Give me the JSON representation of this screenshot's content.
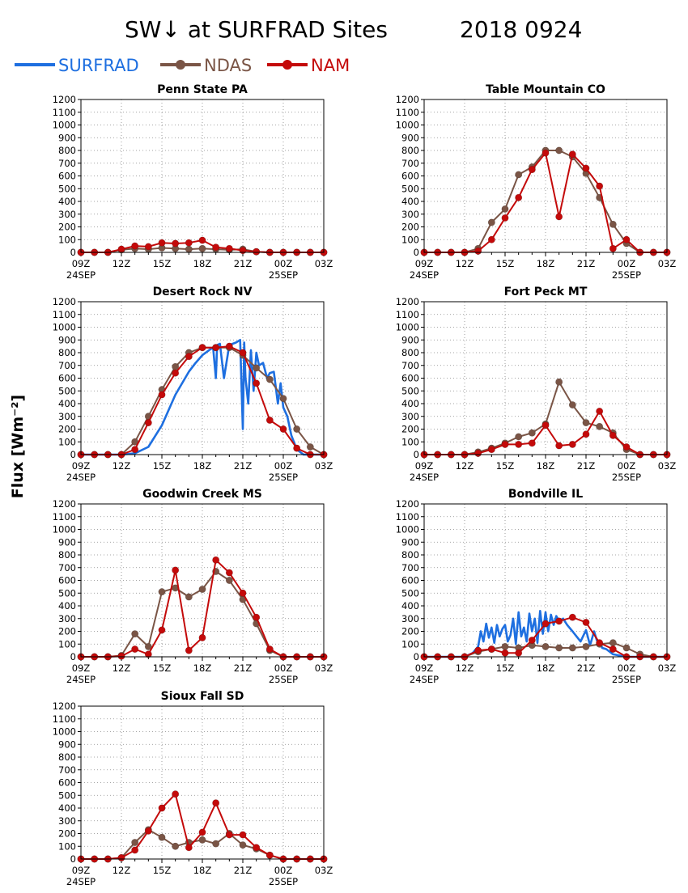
{
  "title_left": "SW↓ at SURFRAD Sites",
  "title_right": "2018 0924",
  "y_axis_label": "Flux [Wm⁻²]",
  "legend": [
    {
      "name": "SURFRAD",
      "color": "#1e6fe0",
      "marker": false
    },
    {
      "name": "NDAS",
      "color": "#7a5546",
      "marker": true
    },
    {
      "name": "NAM",
      "color": "#c40a0a",
      "marker": true
    }
  ],
  "axes": {
    "ylim": [
      0,
      1200
    ],
    "yticks": [
      0,
      100,
      200,
      300,
      400,
      500,
      600,
      700,
      800,
      900,
      1000,
      1100,
      1200
    ],
    "xlim": [
      9,
      27
    ],
    "xticks": [
      {
        "h": 9,
        "label": "09Z",
        "date": "24SEP"
      },
      {
        "h": 12,
        "label": "12Z",
        "date": ""
      },
      {
        "h": 15,
        "label": "15Z",
        "date": ""
      },
      {
        "h": 18,
        "label": "18Z",
        "date": ""
      },
      {
        "h": 21,
        "label": "21Z",
        "date": ""
      },
      {
        "h": 24,
        "label": "00Z",
        "date": "25SEP"
      },
      {
        "h": 27,
        "label": "03Z",
        "date": ""
      }
    ],
    "grid": "dotted"
  },
  "chart_data": [
    {
      "type": "line",
      "title": "Penn State PA",
      "x": [
        9,
        10,
        11,
        12,
        13,
        14,
        15,
        16,
        17,
        18,
        19,
        20,
        21,
        22,
        23,
        24,
        25,
        26,
        27
      ],
      "series": [
        {
          "name": "NDAS",
          "values": [
            0,
            0,
            0,
            20,
            30,
            25,
            35,
            30,
            25,
            30,
            25,
            20,
            25,
            5,
            0,
            0,
            0,
            0,
            0
          ]
        },
        {
          "name": "NAM",
          "values": [
            0,
            0,
            0,
            25,
            50,
            45,
            75,
            70,
            75,
            95,
            40,
            30,
            15,
            5,
            0,
            0,
            0,
            0,
            0
          ]
        }
      ]
    },
    {
      "type": "line",
      "title": "Table Mountain CO",
      "x": [
        9,
        10,
        11,
        12,
        13,
        14,
        15,
        16,
        17,
        18,
        19,
        20,
        21,
        22,
        23,
        24,
        25,
        26,
        27
      ],
      "series": [
        {
          "name": "NDAS",
          "values": [
            0,
            0,
            0,
            0,
            30,
            235,
            340,
            610,
            670,
            800,
            800,
            750,
            620,
            430,
            220,
            70,
            0,
            0,
            0
          ]
        },
        {
          "name": "NAM",
          "values": [
            0,
            0,
            0,
            0,
            10,
            100,
            270,
            430,
            650,
            780,
            280,
            770,
            660,
            520,
            30,
            100,
            0,
            0,
            0
          ]
        }
      ]
    },
    {
      "type": "line",
      "title": "Desert Rock NV",
      "x": [
        9,
        10,
        11,
        12,
        13,
        14,
        15,
        16,
        17,
        18,
        19,
        20,
        21,
        22,
        23,
        24,
        25,
        26,
        27
      ],
      "series": [
        {
          "name": "SURFRAD",
          "x": [
            9,
            12,
            13,
            14,
            15,
            16,
            17,
            17.5,
            18,
            18.5,
            18.8,
            19,
            19.1,
            19.3,
            19.6,
            20,
            20.5,
            20.8,
            21,
            21.1,
            21.2,
            21.4,
            21.6,
            21.8,
            22,
            22.2,
            22.5,
            22.8,
            23,
            23.3,
            23.6,
            23.8,
            24,
            24.3,
            24.6,
            25,
            25.5,
            26,
            27
          ],
          "values": [
            0,
            0,
            10,
            60,
            230,
            470,
            650,
            720,
            780,
            820,
            840,
            600,
            860,
            870,
            600,
            860,
            880,
            900,
            200,
            880,
            600,
            400,
            820,
            500,
            800,
            700,
            720,
            600,
            640,
            650,
            400,
            560,
            370,
            300,
            150,
            40,
            0,
            0,
            0
          ]
        },
        {
          "name": "NDAS",
          "values": [
            0,
            0,
            0,
            0,
            100,
            300,
            510,
            690,
            800,
            840,
            840,
            840,
            780,
            680,
            590,
            440,
            200,
            60,
            0
          ]
        },
        {
          "name": "NAM",
          "values": [
            0,
            0,
            0,
            0,
            40,
            250,
            470,
            640,
            770,
            840,
            840,
            850,
            800,
            560,
            270,
            200,
            50,
            0,
            0
          ]
        }
      ]
    },
    {
      "type": "line",
      "title": "Fort Peck MT",
      "x": [
        9,
        10,
        11,
        12,
        13,
        14,
        15,
        16,
        17,
        18,
        19,
        20,
        21,
        22,
        23,
        24,
        25,
        26,
        27
      ],
      "series": [
        {
          "name": "NDAS",
          "values": [
            0,
            0,
            0,
            0,
            20,
            50,
            90,
            140,
            170,
            240,
            570,
            390,
            250,
            220,
            170,
            40,
            0,
            0,
            0
          ]
        },
        {
          "name": "NAM",
          "values": [
            0,
            0,
            0,
            0,
            10,
            40,
            80,
            80,
            90,
            230,
            70,
            80,
            160,
            340,
            150,
            60,
            0,
            0,
            0
          ]
        }
      ]
    },
    {
      "type": "line",
      "title": "Goodwin Creek MS",
      "x": [
        9,
        10,
        11,
        12,
        13,
        14,
        15,
        16,
        17,
        18,
        19,
        20,
        21,
        22,
        23,
        24,
        25,
        26,
        27
      ],
      "series": [
        {
          "name": "NDAS",
          "values": [
            0,
            0,
            0,
            10,
            180,
            80,
            510,
            540,
            470,
            530,
            670,
            600,
            450,
            260,
            50,
            0,
            0,
            0,
            0
          ]
        },
        {
          "name": "NAM",
          "values": [
            0,
            0,
            0,
            5,
            60,
            20,
            210,
            680,
            50,
            150,
            760,
            660,
            500,
            310,
            60,
            0,
            0,
            0,
            0
          ]
        }
      ]
    },
    {
      "type": "line",
      "title": "Bondville IL",
      "x": [
        9,
        10,
        11,
        12,
        13,
        14,
        15,
        16,
        17,
        18,
        19,
        20,
        21,
        22,
        23,
        24,
        25,
        26,
        27
      ],
      "series": [
        {
          "name": "SURFRAD",
          "x": [
            9,
            12,
            12.6,
            13,
            13.2,
            13.4,
            13.6,
            13.8,
            14,
            14.2,
            14.4,
            14.6,
            14.8,
            15,
            15.2,
            15.4,
            15.6,
            15.8,
            16,
            16.2,
            16.4,
            16.6,
            16.8,
            17,
            17.2,
            17.4,
            17.6,
            17.8,
            18,
            18.2,
            18.4,
            18.6,
            18.8,
            19,
            19.3,
            19.6,
            20,
            20.3,
            20.6,
            21,
            21.3,
            21.6,
            21.8,
            22,
            22.2,
            22.5,
            23,
            24,
            27
          ],
          "values": [
            0,
            0,
            30,
            80,
            200,
            120,
            260,
            150,
            230,
            110,
            250,
            160,
            220,
            250,
            120,
            170,
            300,
            100,
            350,
            160,
            230,
            120,
            340,
            200,
            300,
            110,
            360,
            180,
            350,
            200,
            330,
            250,
            320,
            280,
            300,
            250,
            200,
            160,
            120,
            210,
            90,
            200,
            130,
            120,
            70,
            60,
            20,
            0,
            0
          ]
        },
        {
          "name": "NDAS",
          "values": [
            0,
            0,
            0,
            0,
            40,
            60,
            80,
            70,
            90,
            80,
            70,
            70,
            80,
            100,
            110,
            70,
            20,
            0,
            0
          ]
        },
        {
          "name": "NAM",
          "values": [
            0,
            0,
            0,
            0,
            50,
            60,
            30,
            30,
            130,
            260,
            280,
            310,
            270,
            110,
            60,
            0,
            0,
            0,
            0
          ]
        }
      ]
    },
    {
      "type": "line",
      "title": "Sioux Fall SD",
      "x": [
        9,
        10,
        11,
        12,
        13,
        14,
        15,
        16,
        17,
        18,
        19,
        20,
        21,
        22,
        23,
        24,
        25,
        26,
        27
      ],
      "series": [
        {
          "name": "NDAS",
          "values": [
            0,
            0,
            0,
            10,
            130,
            230,
            170,
            100,
            130,
            150,
            120,
            200,
            110,
            80,
            30,
            0,
            0,
            0,
            0
          ]
        },
        {
          "name": "NAM",
          "values": [
            0,
            0,
            0,
            10,
            70,
            220,
            400,
            510,
            90,
            210,
            440,
            190,
            190,
            90,
            30,
            0,
            0,
            0,
            0
          ]
        }
      ]
    }
  ]
}
